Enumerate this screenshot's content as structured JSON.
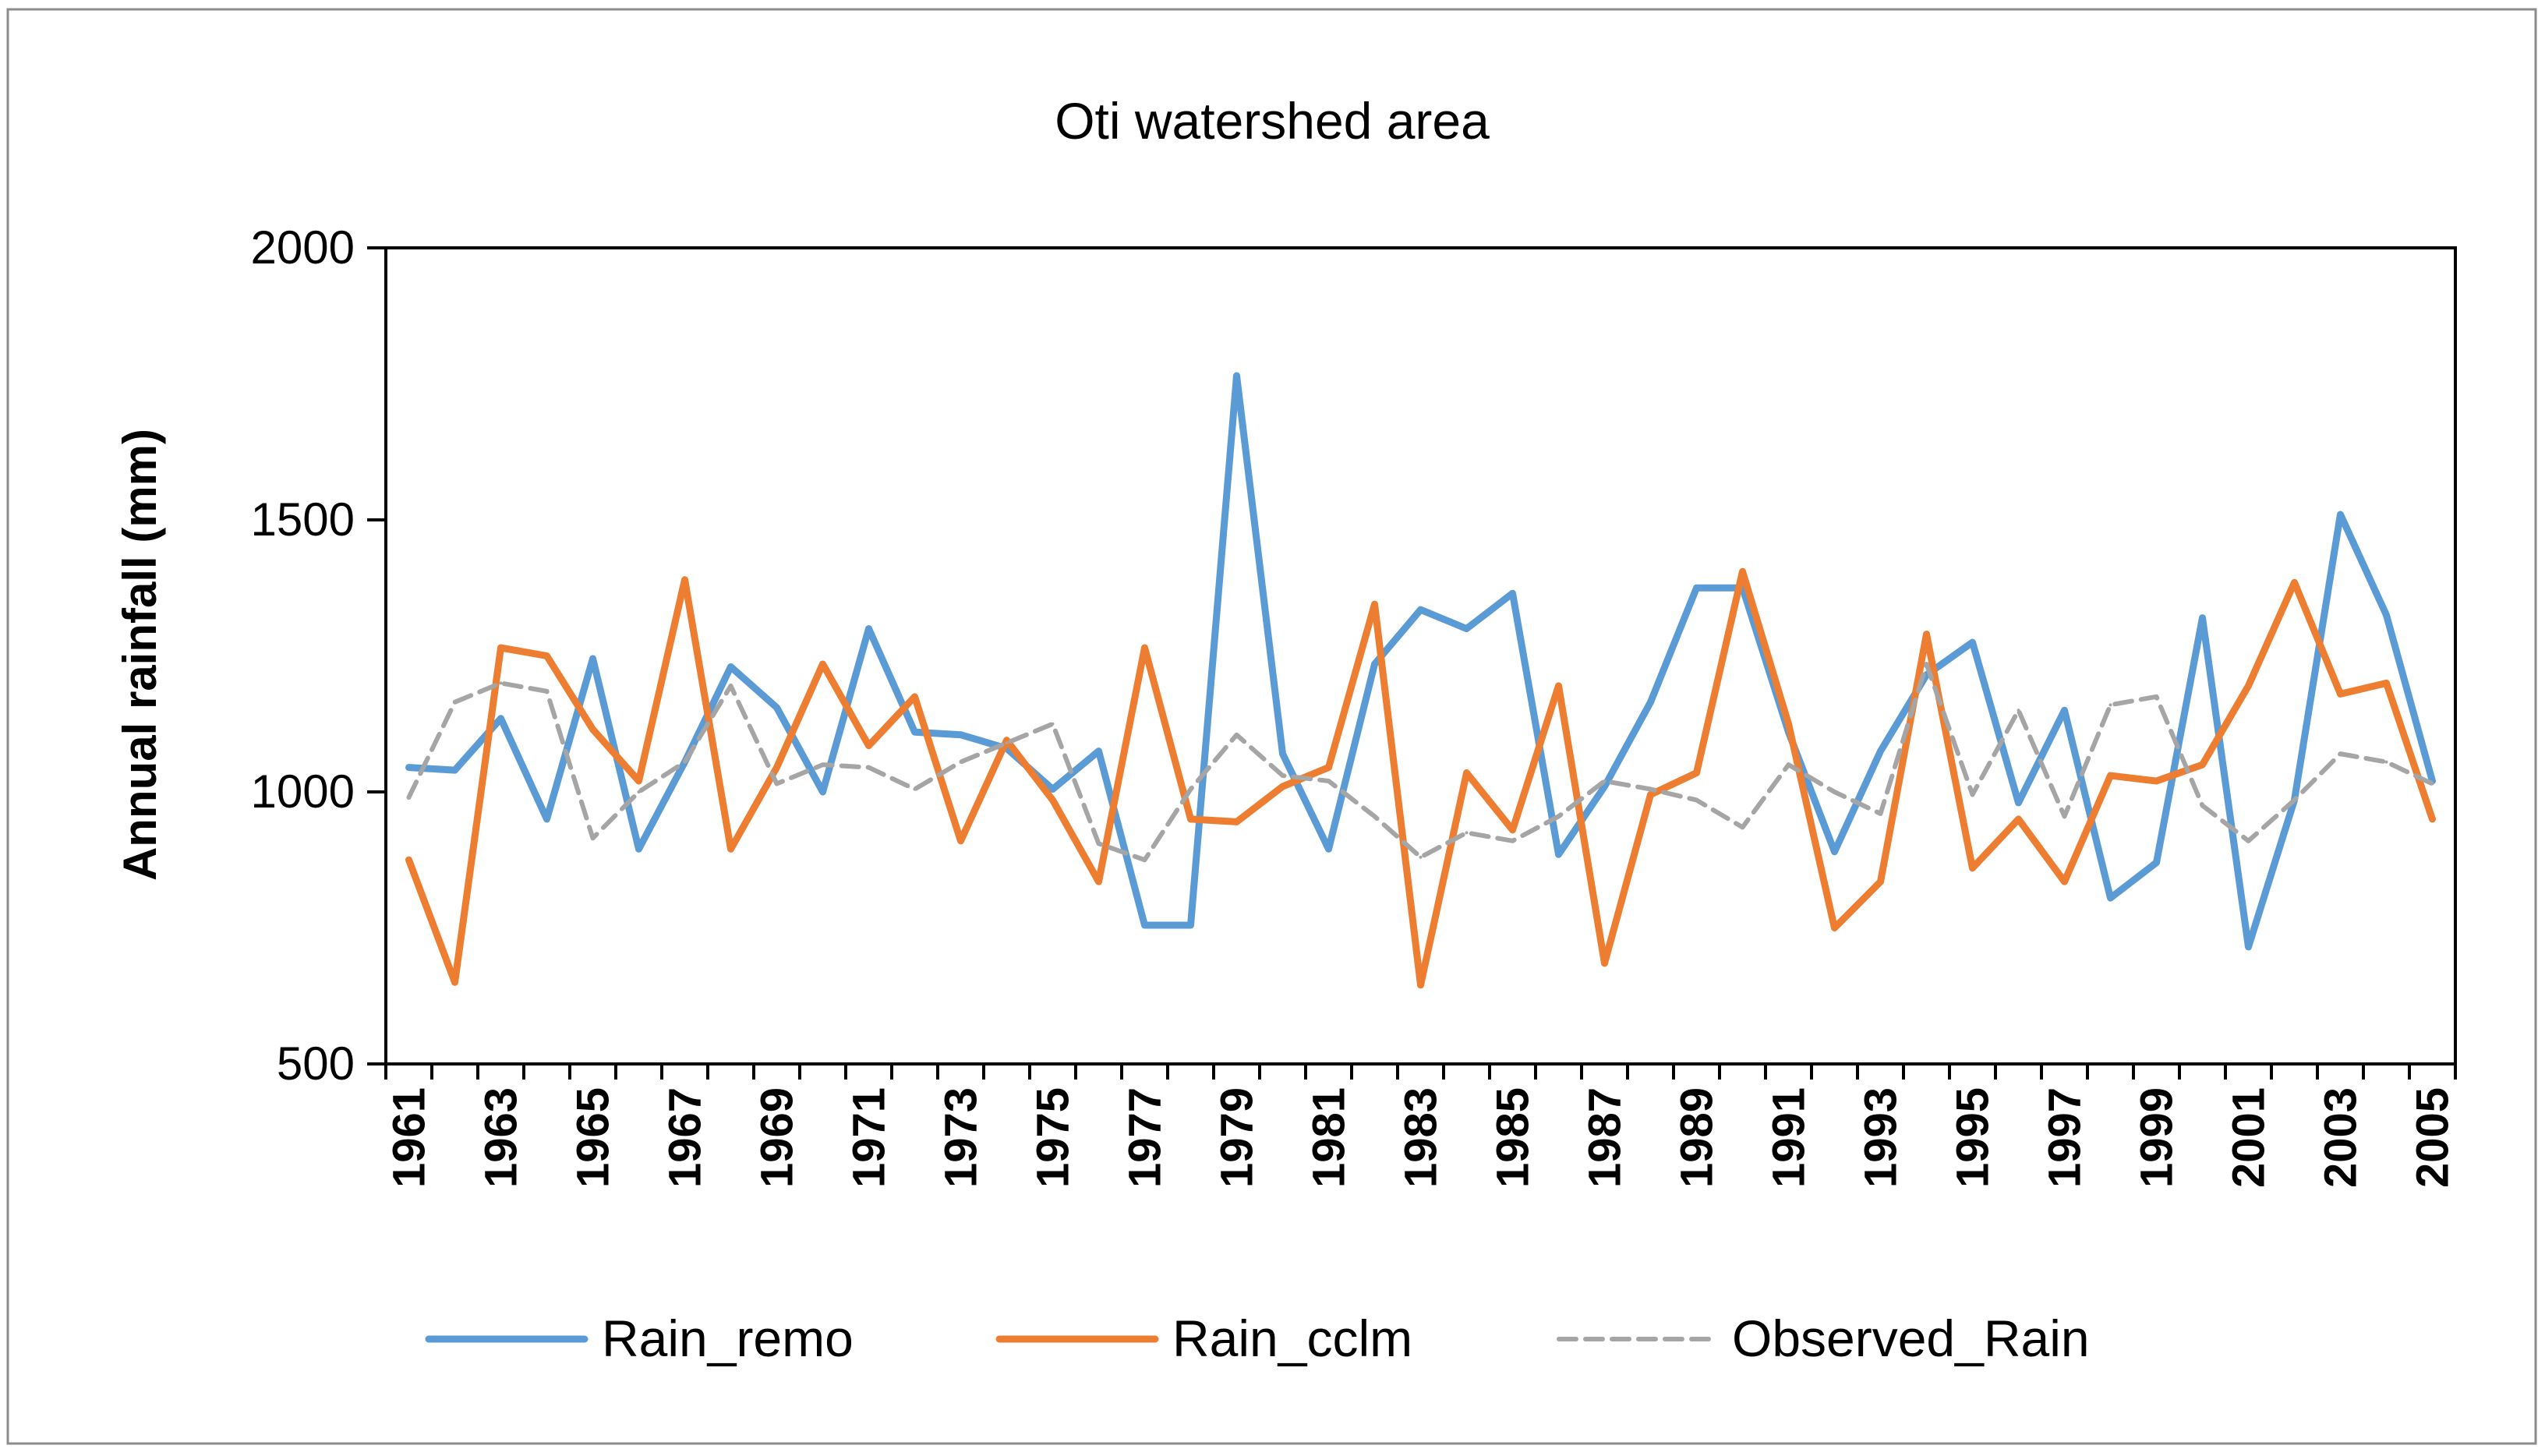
{
  "chart_data": {
    "type": "line",
    "title": "Oti watershed area",
    "xlabel": "",
    "ylabel": "Annual rainfall (mm)",
    "ylim": [
      500,
      2000
    ],
    "yticks": [
      500,
      1000,
      1500,
      2000
    ],
    "x": [
      1961,
      1962,
      1963,
      1964,
      1965,
      1966,
      1967,
      1968,
      1969,
      1970,
      1971,
      1972,
      1973,
      1974,
      1975,
      1976,
      1977,
      1978,
      1979,
      1980,
      1981,
      1982,
      1983,
      1984,
      1985,
      1986,
      1987,
      1988,
      1989,
      1990,
      1991,
      1992,
      1993,
      1994,
      1995,
      1996,
      1997,
      1998,
      1999,
      2000,
      2001,
      2002,
      2003,
      2004,
      2005
    ],
    "xtick_labels": [
      "1961",
      "1963",
      "1965",
      "1967",
      "1969",
      "1971",
      "1973",
      "1975",
      "1977",
      "1979",
      "1981",
      "1983",
      "1985",
      "1987",
      "1989",
      "1991",
      "1993",
      "1995",
      "1997",
      "1999",
      "2001",
      "2003",
      "2005"
    ],
    "legend_position": "bottom",
    "series": [
      {
        "name": "Rain_remo",
        "color": "#5B9BD5",
        "style": "solid",
        "values": [
          1045,
          1040,
          1135,
          950,
          1245,
          895,
          1055,
          1230,
          1155,
          1000,
          1300,
          1110,
          1105,
          1080,
          1005,
          1075,
          755,
          755,
          1765,
          1070,
          895,
          1235,
          1335,
          1300,
          1365,
          885,
          1010,
          1165,
          1375,
          1375,
          1110,
          890,
          1075,
          1215,
          1275,
          980,
          1150,
          805,
          870,
          1320,
          715,
          985,
          1510,
          1325,
          1020
        ]
      },
      {
        "name": "Rain_cclm",
        "color": "#ED7D31",
        "style": "solid",
        "values": [
          875,
          650,
          1265,
          1250,
          1115,
          1020,
          1390,
          895,
          1045,
          1235,
          1085,
          1175,
          910,
          1095,
          985,
          835,
          1265,
          950,
          945,
          1010,
          1045,
          1345,
          645,
          1035,
          930,
          1195,
          685,
          995,
          1035,
          1405,
          1125,
          750,
          835,
          1290,
          860,
          950,
          835,
          1030,
          1020,
          1050,
          1195,
          1385,
          1180,
          1200,
          950
        ]
      },
      {
        "name": "Observed_Rain",
        "color": "#A5A5A5",
        "style": "dashed",
        "values": [
          990,
          1165,
          1200,
          1185,
          915,
          1000,
          1055,
          1195,
          1015,
          1050,
          1045,
          1005,
          1055,
          1090,
          1125,
          905,
          875,
          1005,
          1105,
          1030,
          1020,
          955,
          880,
          925,
          910,
          955,
          1020,
          1005,
          985,
          935,
          1050,
          1000,
          960,
          1235,
          995,
          1150,
          955,
          1160,
          1175,
          975,
          910,
          985,
          1070,
          1055,
          1015
        ]
      }
    ]
  }
}
